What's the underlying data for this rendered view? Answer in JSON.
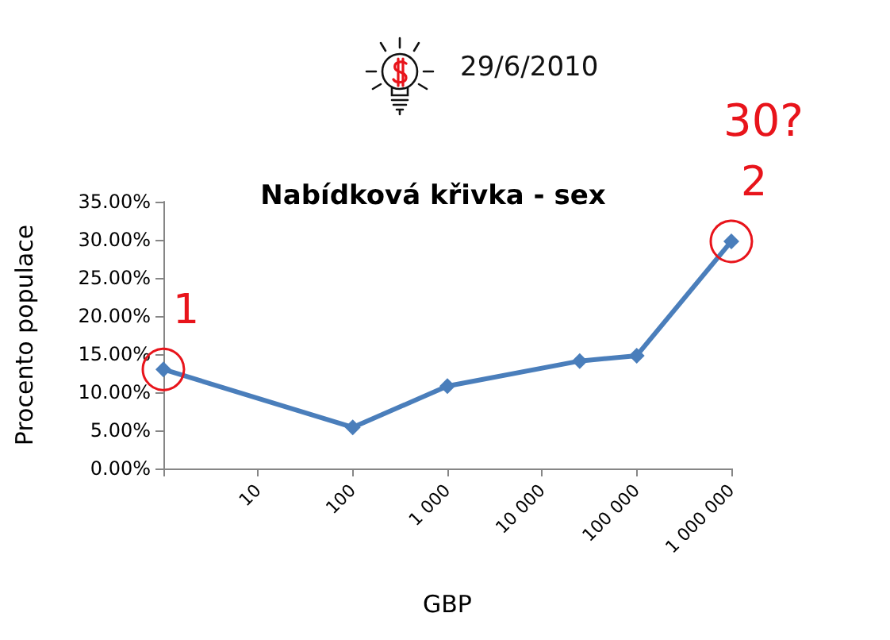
{
  "chart_data": {
    "type": "line",
    "title": "Nabídková křivka - sex",
    "xlabel": "GBP",
    "ylabel": "Procento populace",
    "x": [
      1,
      100,
      1000,
      25000,
      100000,
      1000000
    ],
    "values": [
      13,
      5.4,
      10.8,
      14.1,
      14.8,
      29.8
    ],
    "color": "#4a7ebb",
    "log": "x",
    "xlim": [
      1,
      1000000
    ],
    "xticks": [
      {
        "value": 1,
        "label": null
      },
      10,
      100,
      {
        "value": 1000,
        "label": "1 000"
      },
      {
        "value": 10000,
        "label": "10 000"
      },
      {
        "value": 100000,
        "label": "100 000"
      },
      {
        "value": 1000000,
        "label": "1 000 000"
      }
    ],
    "ylim": [
      0,
      35
    ],
    "yticks": [
      {
        "value": 0,
        "label": "0.00%"
      },
      {
        "value": 5,
        "label": "5.00%"
      },
      {
        "value": 10,
        "label": "10.00%"
      },
      {
        "value": 15,
        "label": "15.00%"
      },
      {
        "value": 20,
        "label": "20.00%"
      },
      {
        "value": 25,
        "label": "25.00%"
      },
      {
        "value": 30,
        "label": "30.00%"
      },
      {
        "value": 35,
        "label": "35.00%"
      }
    ],
    "marker": "diamond",
    "line_style": "solid",
    "annotations": [
      "29/6/2010",
      "30?",
      {
        "text": "1",
        "x": 1,
        "y": 13
      },
      {
        "text": "2",
        "x": 1000000,
        "y": 29.8
      }
    ]
  }
}
